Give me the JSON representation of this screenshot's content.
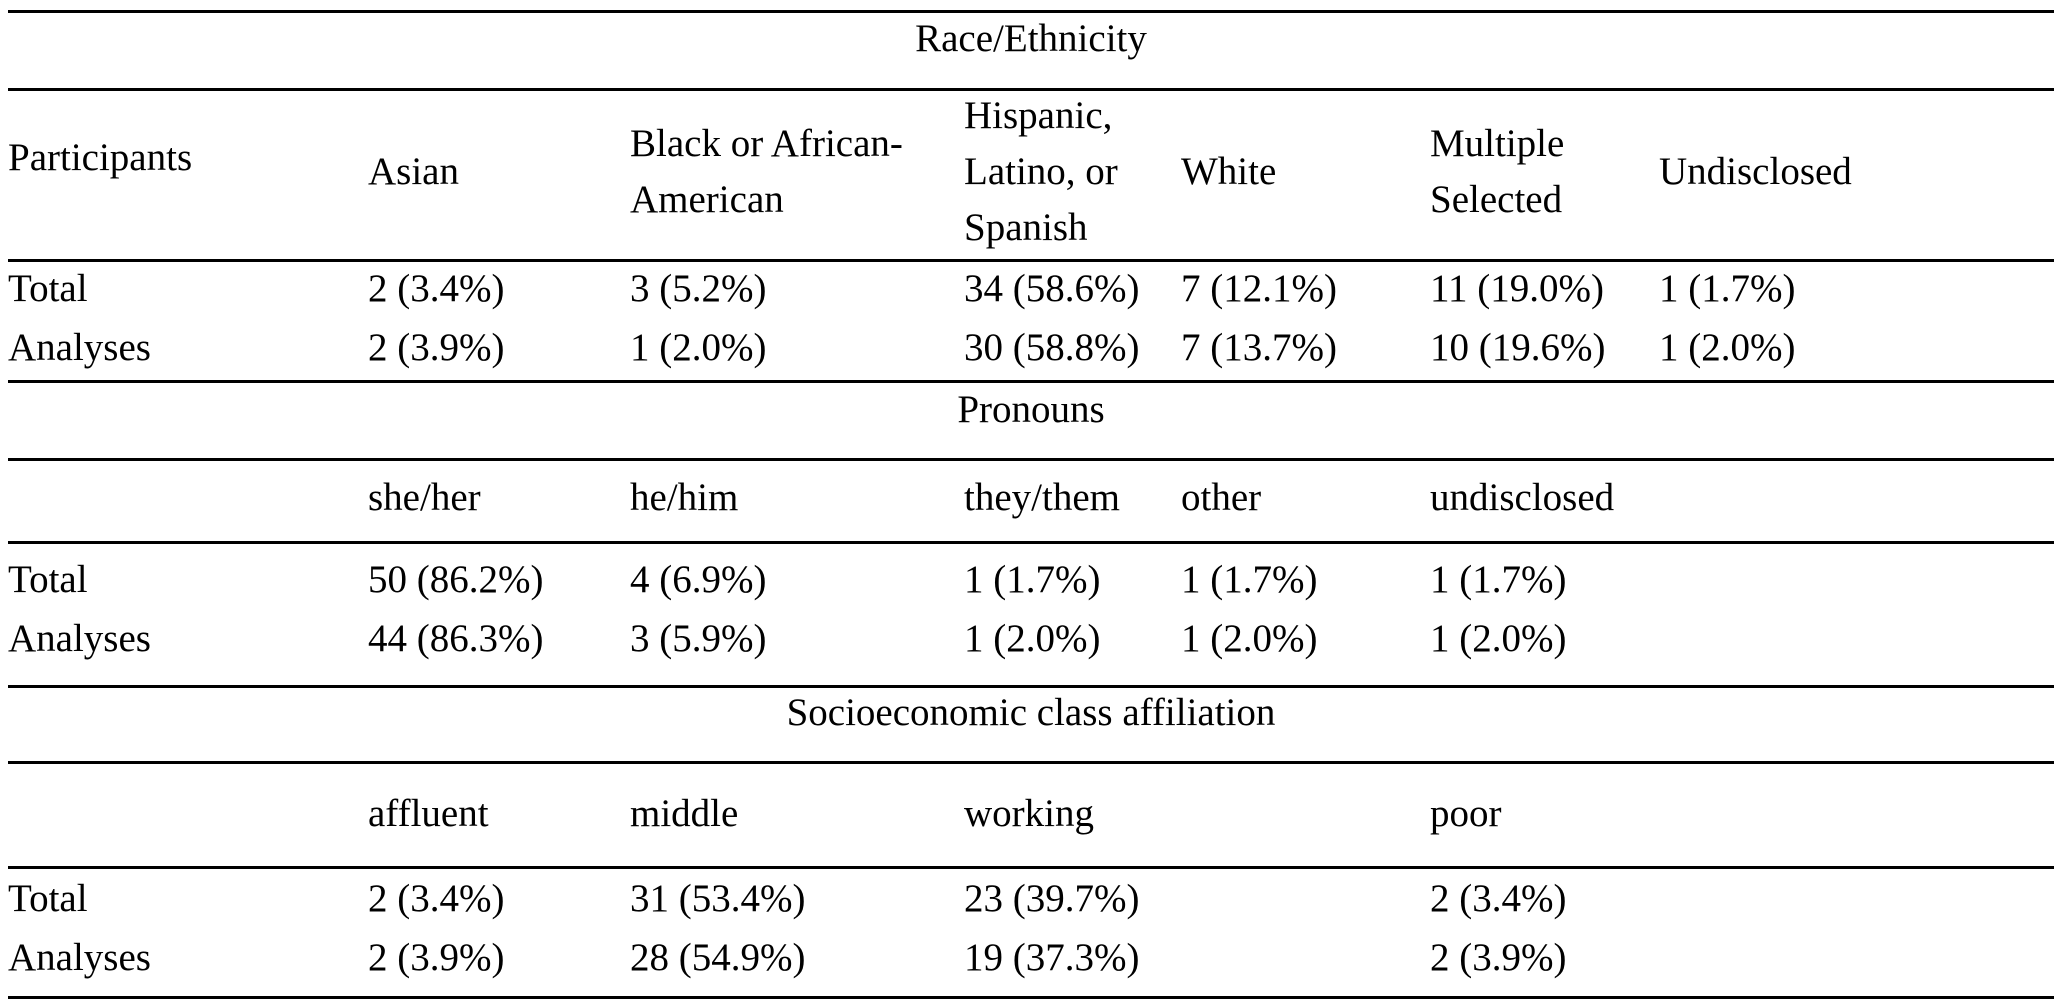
{
  "sections": [
    {
      "title": "Race/Ethnicity",
      "row_label_header": "Participants",
      "columns": [
        "Asian",
        "Black or African-\nAmerican",
        "Hispanic,\nLatino, or\nSpanish",
        "White",
        "Multiple\nSelected",
        "Undisclosed"
      ],
      "rows": [
        {
          "label": "Total",
          "values": [
            "2 (3.4%)",
            "3 (5.2%)",
            "34 (58.6%)",
            "7 (12.1%)",
            "11 (19.0%)",
            "1 (1.7%)"
          ]
        },
        {
          "label": "Analyses",
          "values": [
            "2 (3.9%)",
            "1 (2.0%)",
            "30 (58.8%)",
            "7 (13.7%)",
            "10 (19.6%)",
            "1 (2.0%)"
          ]
        }
      ]
    },
    {
      "title": "Pronouns",
      "row_label_header": "",
      "columns": [
        "she/her",
        "he/him",
        "they/them",
        "other",
        "undisclosed",
        ""
      ],
      "rows": [
        {
          "label": "Total",
          "values": [
            "50 (86.2%)",
            "4 (6.9%)",
            "1 (1.7%)",
            "1 (1.7%)",
            "1 (1.7%)",
            ""
          ]
        },
        {
          "label": "Analyses",
          "values": [
            "44 (86.3%)",
            "3 (5.9%)",
            "1 (2.0%)",
            "1 (2.0%)",
            "1 (2.0%)",
            ""
          ]
        }
      ]
    },
    {
      "title": "Socioeconomic class affiliation",
      "row_label_header": "",
      "columns": [
        "affluent",
        "middle",
        "working",
        "",
        "poor",
        ""
      ],
      "rows": [
        {
          "label": "Total",
          "values": [
            "2 (3.4%)",
            "31 (53.4%)",
            "23 (39.7%)",
            "",
            "2 (3.4%)",
            ""
          ]
        },
        {
          "label": "Analyses",
          "values": [
            "2 (3.9%)",
            "28 (54.9%)",
            "19 (37.3%)",
            "",
            "2 (3.9%)",
            ""
          ]
        }
      ]
    }
  ]
}
